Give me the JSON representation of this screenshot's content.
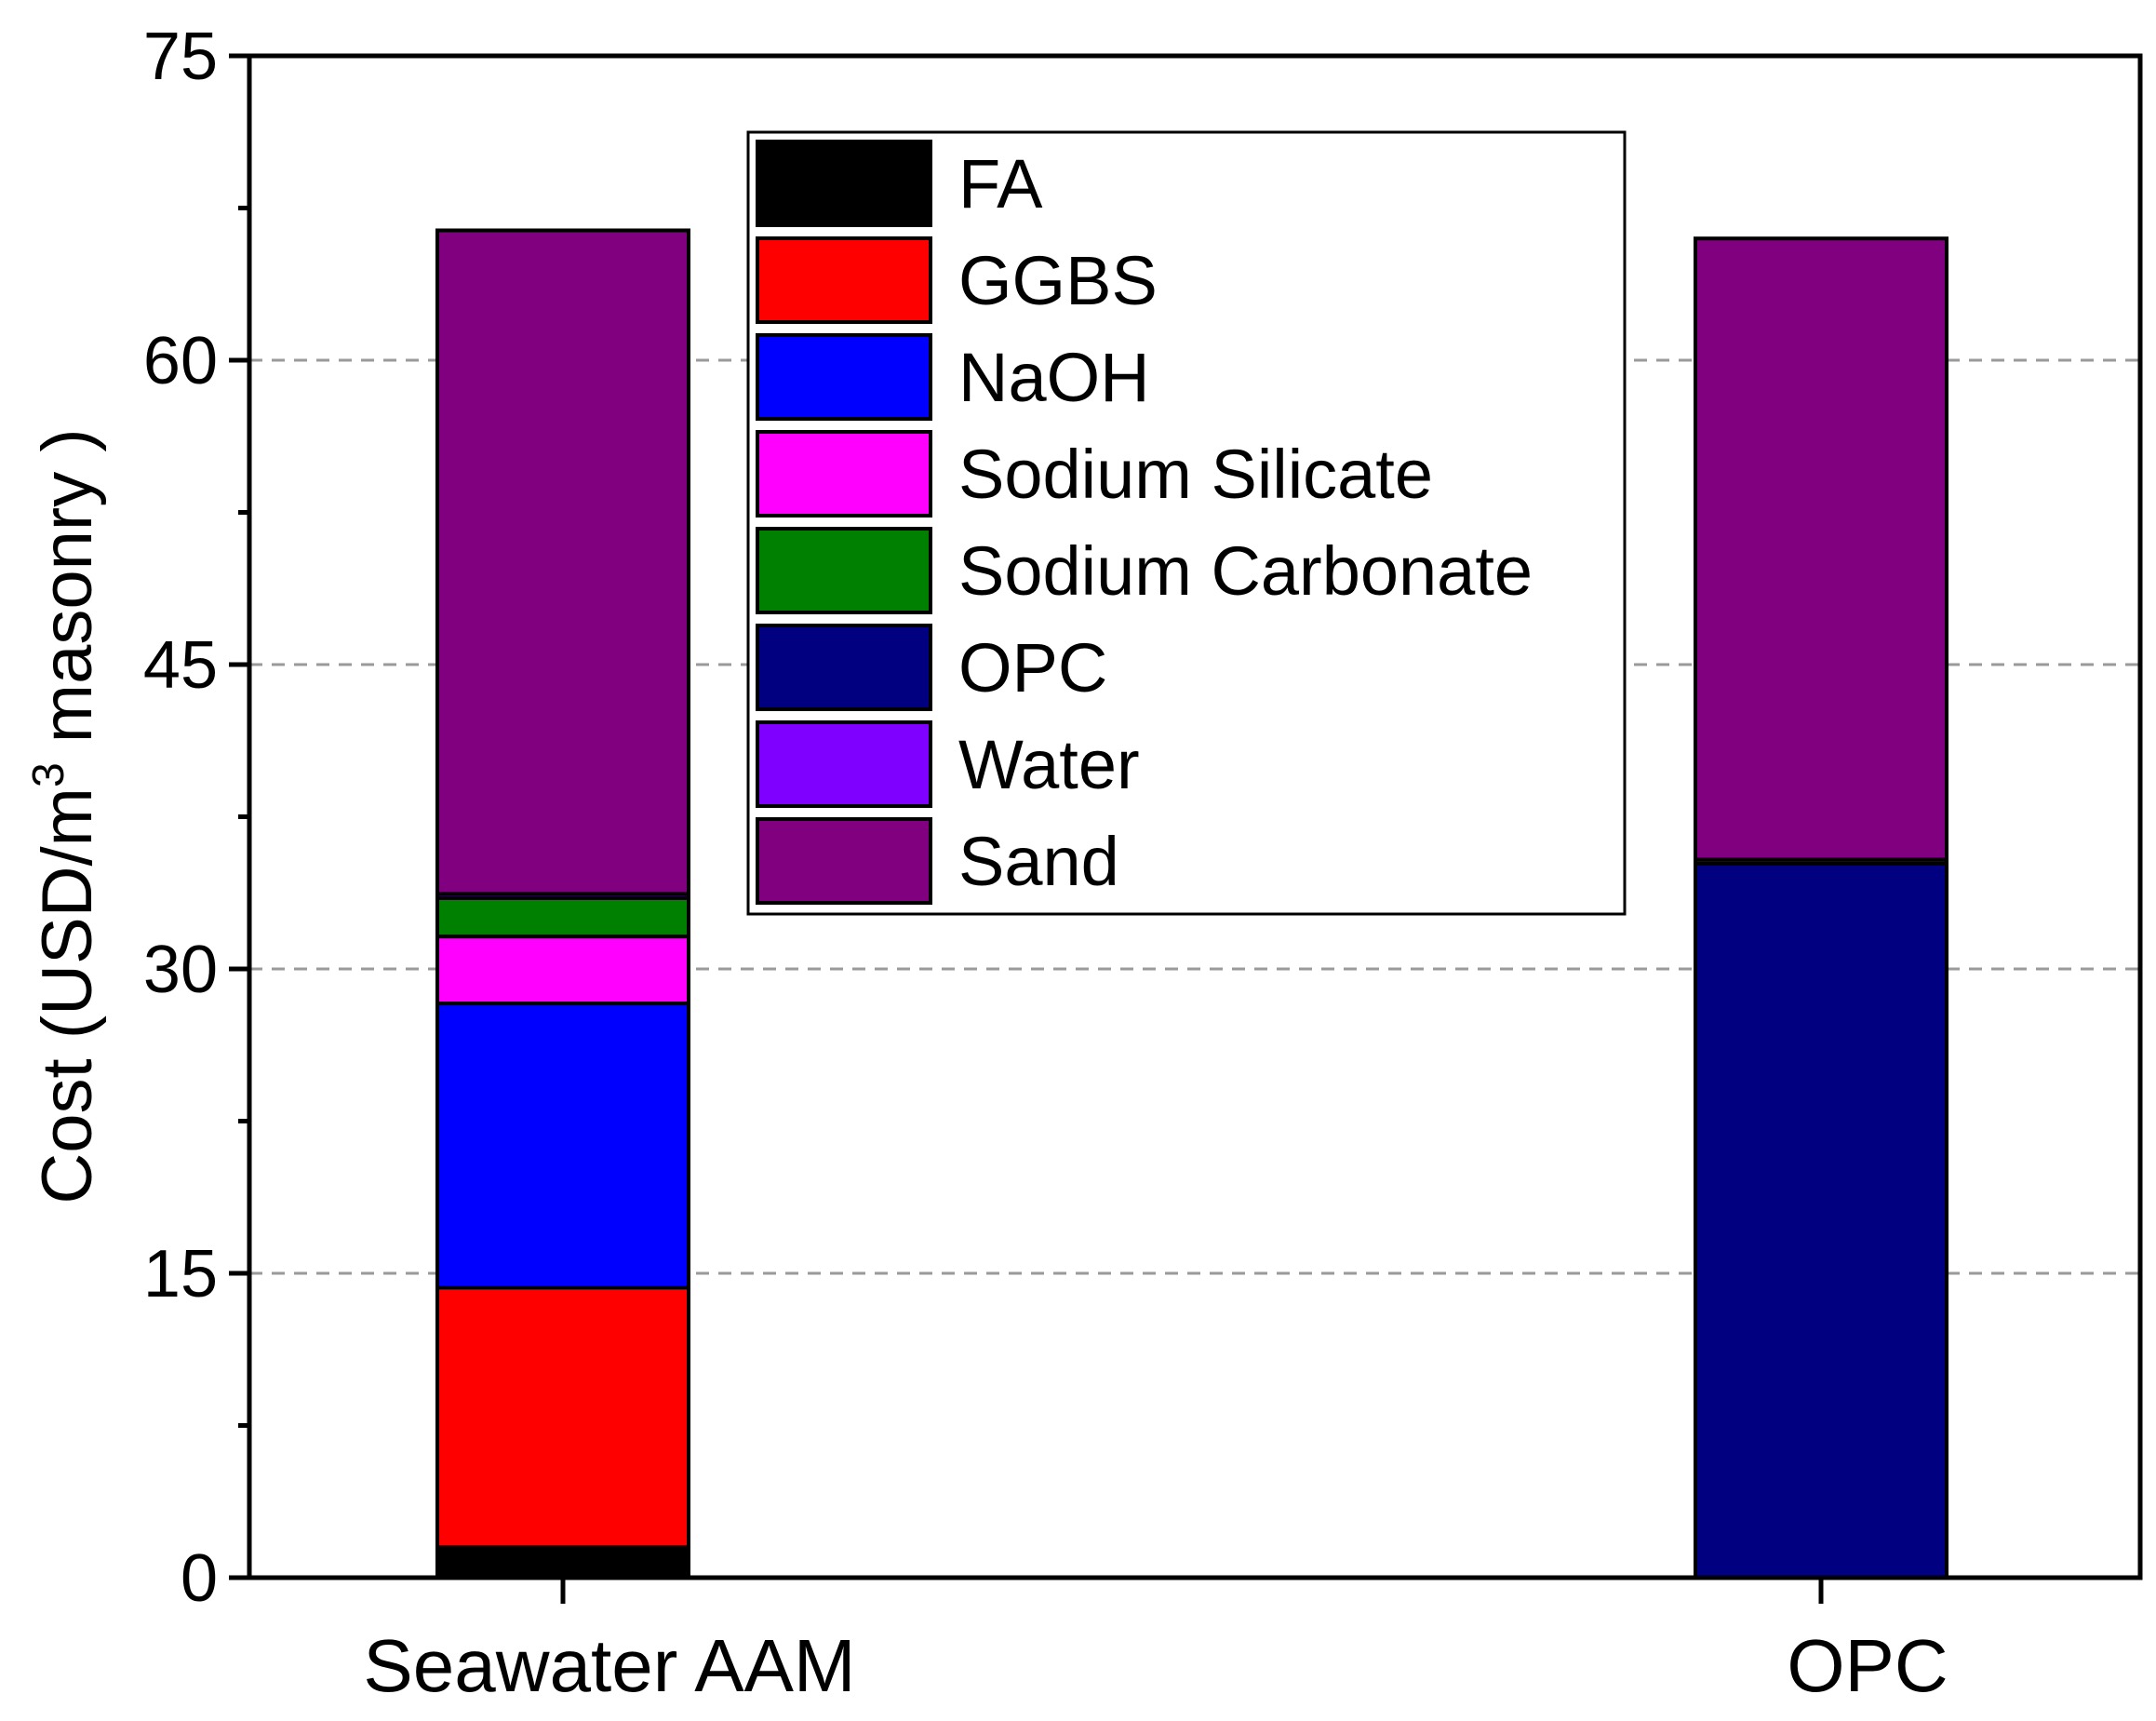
{
  "chart_data": {
    "type": "bar",
    "stacked": true,
    "title": "",
    "xlabel": "",
    "ylabel": "Cost (USD/m³ masonry )",
    "ylabel_parts": {
      "prefix": "Cost (USD/m",
      "sup": "3",
      "suffix": " masonry )"
    },
    "ylim": [
      0,
      75
    ],
    "yticks": [
      0,
      15,
      30,
      45,
      60,
      75
    ],
    "grid": "horizontal dashed",
    "legend_position": "top-center",
    "categories": [
      "Seawater AAM",
      "OPC"
    ],
    "series": [
      {
        "name": "FA",
        "color": "#000000",
        "values": [
          1.5,
          0
        ]
      },
      {
        "name": "GGBS",
        "color": "#ff0000",
        "values": [
          12.8,
          0
        ]
      },
      {
        "name": "NaOH",
        "color": "#0000ff",
        "values": [
          14.0,
          0
        ]
      },
      {
        "name": "Sodium Silicate",
        "color": "#ff00ff",
        "values": [
          3.3,
          0
        ]
      },
      {
        "name": "Sodium Carbonate",
        "color": "#008000",
        "values": [
          1.9,
          0
        ]
      },
      {
        "name": "OPC",
        "color": "#000080",
        "values": [
          0,
          35.2
        ]
      },
      {
        "name": "Water",
        "color": "#8000ff",
        "values": [
          0.2,
          0.2
        ]
      },
      {
        "name": "Sand",
        "color": "#800080",
        "values": [
          32.7,
          30.6
        ]
      }
    ]
  }
}
